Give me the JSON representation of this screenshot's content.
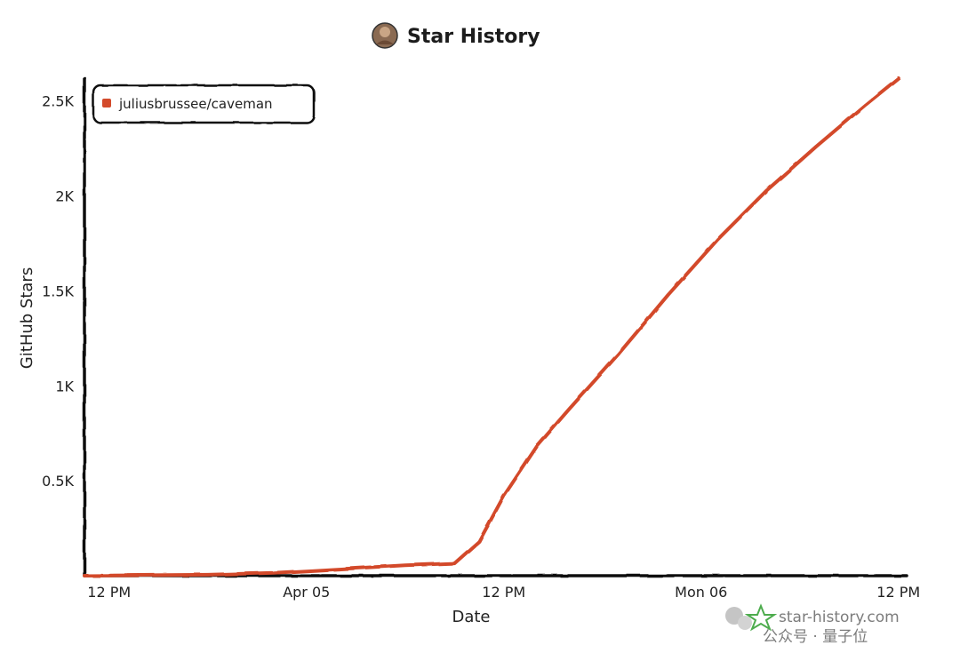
{
  "chart_data": {
    "type": "line",
    "title": "Star History",
    "xlabel": "Date",
    "ylabel": "GitHub Stars",
    "x_ticks": [
      "12 PM",
      "Apr 05",
      "12 PM",
      "Mon 06",
      "12 PM"
    ],
    "x_tick_hours": [
      0,
      12,
      24,
      36,
      48
    ],
    "x_domain_hours": [
      -1.5,
      48.5
    ],
    "y_ticks": [
      {
        "value": 500,
        "label": "0.5K"
      },
      {
        "value": 1000,
        "label": "1K"
      },
      {
        "value": 1500,
        "label": "1.5K"
      },
      {
        "value": 2000,
        "label": "2K"
      },
      {
        "value": 2500,
        "label": "2.5K"
      }
    ],
    "ylim": [
      0,
      2620
    ],
    "legend_position": "top-left",
    "series": [
      {
        "name": "juliusbrussee/caveman",
        "color": "#d34a2b",
        "x_hours": [
          -1.5,
          6,
          10,
          12,
          15,
          18,
          21,
          22.5,
          24,
          26,
          28,
          31,
          34,
          37,
          40,
          43,
          46,
          48
        ],
        "values": [
          0,
          5,
          15,
          25,
          40,
          55,
          65,
          180,
          420,
          680,
          880,
          1170,
          1480,
          1770,
          2030,
          2260,
          2480,
          2620
        ]
      }
    ]
  },
  "watermark": {
    "site": "star-history.com",
    "channel": "公众号 · 量子位"
  },
  "colors": {
    "axis": "#111111",
    "line": "#d34a2b",
    "watermark_star": "#2e9e2e"
  }
}
